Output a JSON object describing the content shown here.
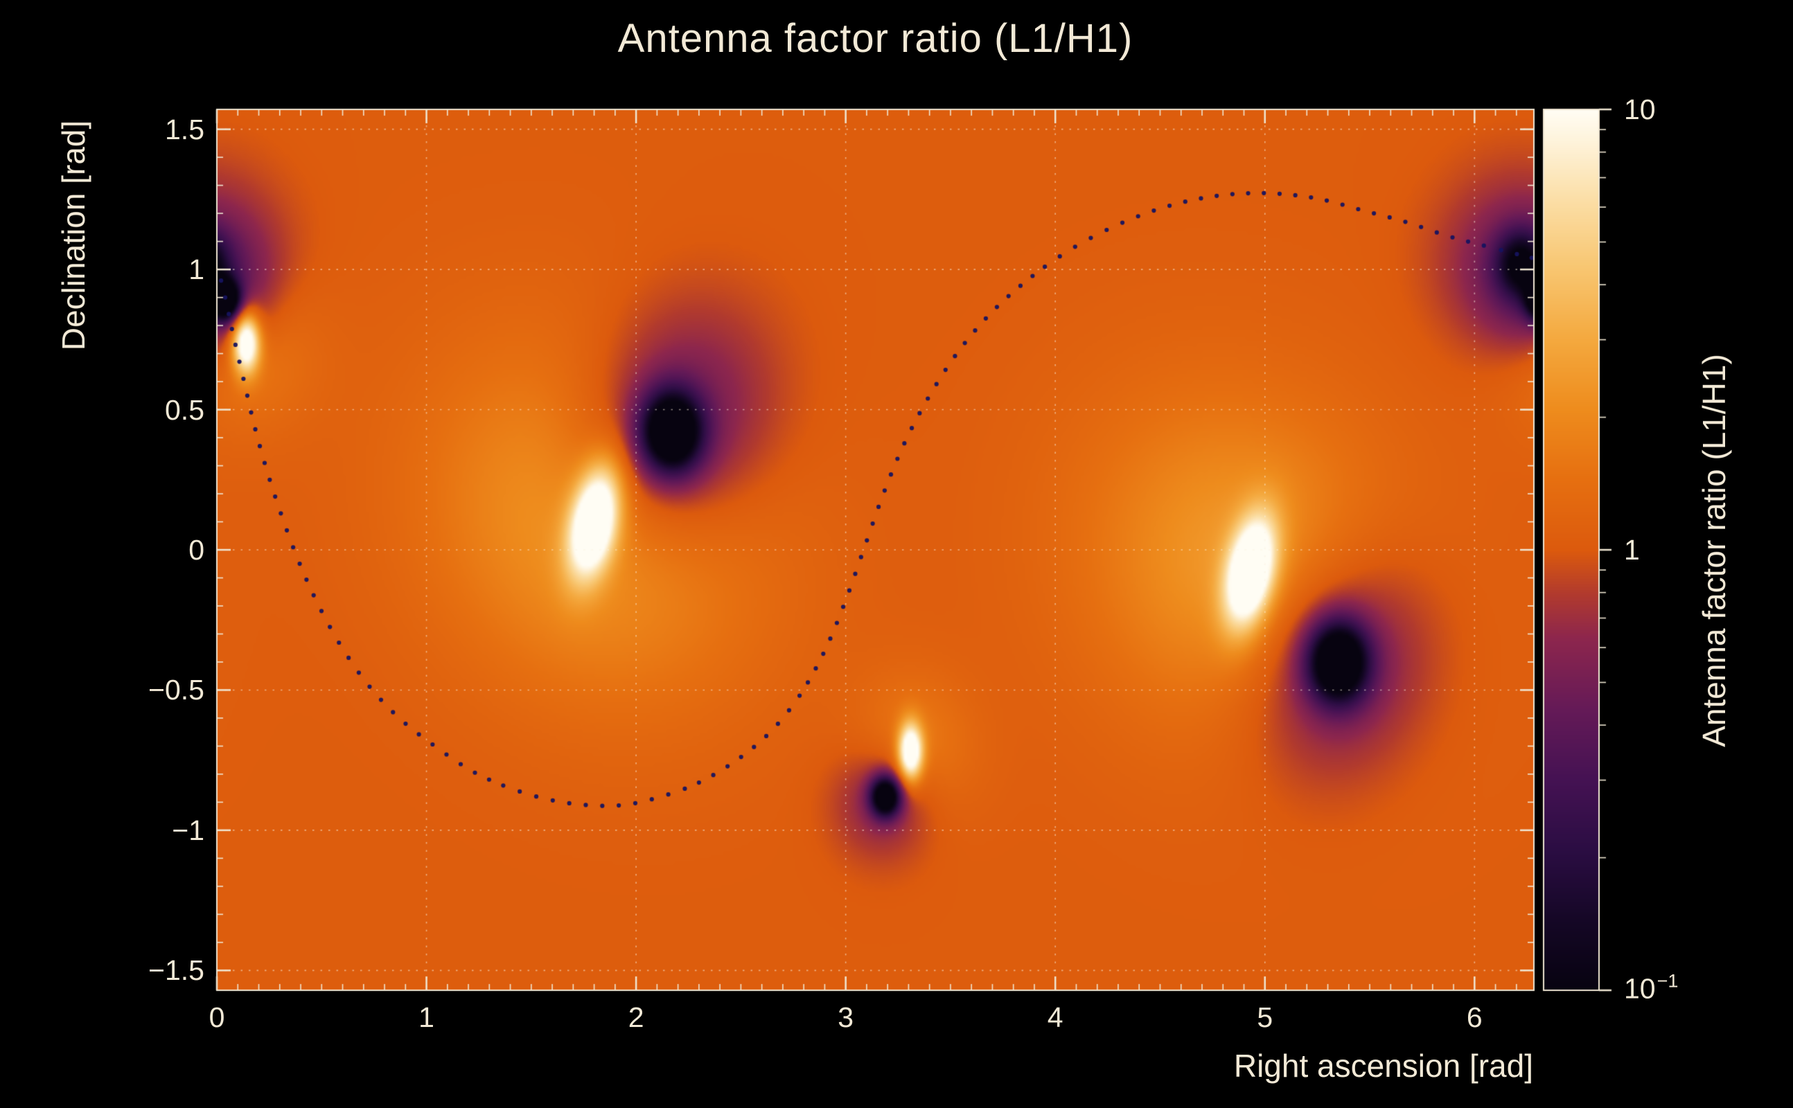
{
  "colors": {
    "background": "#000000",
    "text": "#f2e9d6",
    "grid": "#fbf2e0",
    "frame": "#efe6d2",
    "curve_dot": "#16135f"
  },
  "chart_data": {
    "type": "heatmap",
    "title": "Antenna factor ratio (L1/H1)",
    "xlabel": "Right ascension [rad]",
    "ylabel": "Declination [rad]",
    "colorbar_label": "Antenna factor ratio (L1/H1)",
    "x_range": [
      0,
      6.2832
    ],
    "y_range": [
      -1.5708,
      1.5708
    ],
    "x_ticks": [
      {
        "v": 0,
        "label": "0"
      },
      {
        "v": 1,
        "label": "1"
      },
      {
        "v": 2,
        "label": "2"
      },
      {
        "v": 3,
        "label": "3"
      },
      {
        "v": 4,
        "label": "4"
      },
      {
        "v": 5,
        "label": "5"
      },
      {
        "v": 6,
        "label": "6"
      }
    ],
    "x_minor_step": 0.1,
    "y_ticks": [
      {
        "v": 1.5,
        "label": "1.5"
      },
      {
        "v": 1,
        "label": "1"
      },
      {
        "v": 0.5,
        "label": "0.5"
      },
      {
        "v": 0,
        "label": "0"
      },
      {
        "v": -0.5,
        "label": "−0.5"
      },
      {
        "v": -1,
        "label": "−1"
      },
      {
        "v": -1.5,
        "label": "−1.5"
      }
    ],
    "y_minor_step": 0.1,
    "z_scale": "log",
    "z_range": [
      0.1,
      10
    ],
    "colorbar_ticks": [
      {
        "v": 10,
        "label": "10"
      },
      {
        "v": 1,
        "label": "1"
      },
      {
        "v": 0.1,
        "label": "10",
        "exp": "−1"
      }
    ],
    "grid": true,
    "palette_stops": [
      [
        0.0,
        "#070310"
      ],
      [
        0.08,
        "#150726"
      ],
      [
        0.16,
        "#2b0d43"
      ],
      [
        0.24,
        "#451253"
      ],
      [
        0.32,
        "#651a57"
      ],
      [
        0.4,
        "#8d264d"
      ],
      [
        0.45,
        "#b13a2e"
      ],
      [
        0.5,
        "#dc5a0d"
      ],
      [
        0.58,
        "#e66f10"
      ],
      [
        0.66,
        "#ee8c1d"
      ],
      [
        0.74,
        "#f4a93f"
      ],
      [
        0.82,
        "#f8c671"
      ],
      [
        0.9,
        "#fbdfa8"
      ],
      [
        0.96,
        "#fef2d8"
      ],
      [
        1.0,
        "#fffdf4"
      ]
    ],
    "background_log10": 0.02,
    "features": [
      {
        "kind": "max",
        "ra": 1.8,
        "dec": 0.1,
        "core": {
          "amp": 1.35,
          "sx": 0.075,
          "sy": 0.14,
          "rot": -0.3
        },
        "halo": {
          "amp": 0.4,
          "sx": 0.55,
          "sy": 0.42,
          "rot": -0.3
        }
      },
      {
        "kind": "min",
        "ra": 2.17,
        "dec": 0.42,
        "core": {
          "amp": -1.35,
          "sx": 0.1,
          "sy": 0.1,
          "rot": 0
        },
        "halo": {
          "amp": -0.5,
          "sx": 0.33,
          "sy": 0.28,
          "rot": 0.5
        }
      },
      {
        "kind": "max",
        "ra": 4.93,
        "dec": -0.08,
        "core": {
          "amp": 1.35,
          "sx": 0.075,
          "sy": 0.14,
          "rot": -0.3
        },
        "halo": {
          "amp": 0.4,
          "sx": 0.55,
          "sy": 0.42,
          "rot": -0.3
        }
      },
      {
        "kind": "min",
        "ra": 5.35,
        "dec": -0.4,
        "core": {
          "amp": -1.35,
          "sx": 0.1,
          "sy": 0.1,
          "rot": 0
        },
        "halo": {
          "amp": -0.5,
          "sx": 0.33,
          "sy": 0.28,
          "rot": 0.5
        }
      },
      {
        "kind": "max",
        "ra": 0.14,
        "dec": 0.74,
        "core": {
          "amp": 1.25,
          "sx": 0.045,
          "sy": 0.075,
          "rot": 0
        },
        "halo": {
          "amp": 0.28,
          "sx": 0.22,
          "sy": 0.2,
          "rot": 0
        }
      },
      {
        "kind": "min",
        "ra": 0.04,
        "dec": 0.89,
        "core": {
          "amp": -1.25,
          "sx": 0.05,
          "sy": 0.05,
          "rot": 0
        },
        "halo": {
          "amp": -0.35,
          "sx": 0.18,
          "sy": 0.16,
          "rot": 0
        }
      },
      {
        "kind": "max",
        "ra": 3.31,
        "dec": -0.72,
        "core": {
          "amp": 1.25,
          "sx": 0.04,
          "sy": 0.07,
          "rot": 0
        },
        "halo": {
          "amp": 0.26,
          "sx": 0.2,
          "sy": 0.18,
          "rot": 0
        }
      },
      {
        "kind": "min",
        "ra": 3.19,
        "dec": -0.88,
        "core": {
          "amp": -1.25,
          "sx": 0.05,
          "sy": 0.05,
          "rot": 0
        },
        "halo": {
          "amp": -0.35,
          "sx": 0.17,
          "sy": 0.15,
          "rot": 0
        }
      },
      {
        "kind": "min",
        "ra": 6.22,
        "dec": 1.02,
        "core": {
          "amp": -0.7,
          "sx": 0.08,
          "sy": 0.08,
          "rot": 0
        },
        "halo": {
          "amp": -0.35,
          "sx": 0.26,
          "sy": 0.22,
          "rot": 0
        }
      }
    ],
    "overlay_curve": {
      "style": "dotted",
      "dot_radius": 3.1,
      "dot_spacing_px": 22,
      "points": [
        [
          0.0,
          1.02
        ],
        [
          0.04,
          0.9
        ],
        [
          0.08,
          0.76
        ],
        [
          0.13,
          0.6
        ],
        [
          0.18,
          0.44
        ],
        [
          0.24,
          0.28
        ],
        [
          0.31,
          0.12
        ],
        [
          0.39,
          -0.04
        ],
        [
          0.48,
          -0.19
        ],
        [
          0.59,
          -0.34
        ],
        [
          0.72,
          -0.48
        ],
        [
          0.87,
          -0.6
        ],
        [
          1.04,
          -0.7
        ],
        [
          1.22,
          -0.79
        ],
        [
          1.4,
          -0.85
        ],
        [
          1.58,
          -0.89
        ],
        [
          1.76,
          -0.91
        ],
        [
          1.94,
          -0.91
        ],
        [
          2.12,
          -0.88
        ],
        [
          2.3,
          -0.83
        ],
        [
          2.48,
          -0.75
        ],
        [
          2.64,
          -0.65
        ],
        [
          2.78,
          -0.52
        ],
        [
          2.9,
          -0.36
        ],
        [
          3.0,
          -0.18
        ],
        [
          3.09,
          0.01
        ],
        [
          3.18,
          0.2
        ],
        [
          3.28,
          0.38
        ],
        [
          3.4,
          0.55
        ],
        [
          3.54,
          0.71
        ],
        [
          3.7,
          0.85
        ],
        [
          3.88,
          0.97
        ],
        [
          4.07,
          1.07
        ],
        [
          4.27,
          1.15
        ],
        [
          4.47,
          1.21
        ],
        [
          4.67,
          1.25
        ],
        [
          4.87,
          1.27
        ],
        [
          5.07,
          1.27
        ],
        [
          5.27,
          1.25
        ],
        [
          5.47,
          1.21
        ],
        [
          5.67,
          1.17
        ],
        [
          5.87,
          1.12
        ],
        [
          6.07,
          1.08
        ],
        [
          6.28,
          1.04
        ]
      ]
    }
  }
}
